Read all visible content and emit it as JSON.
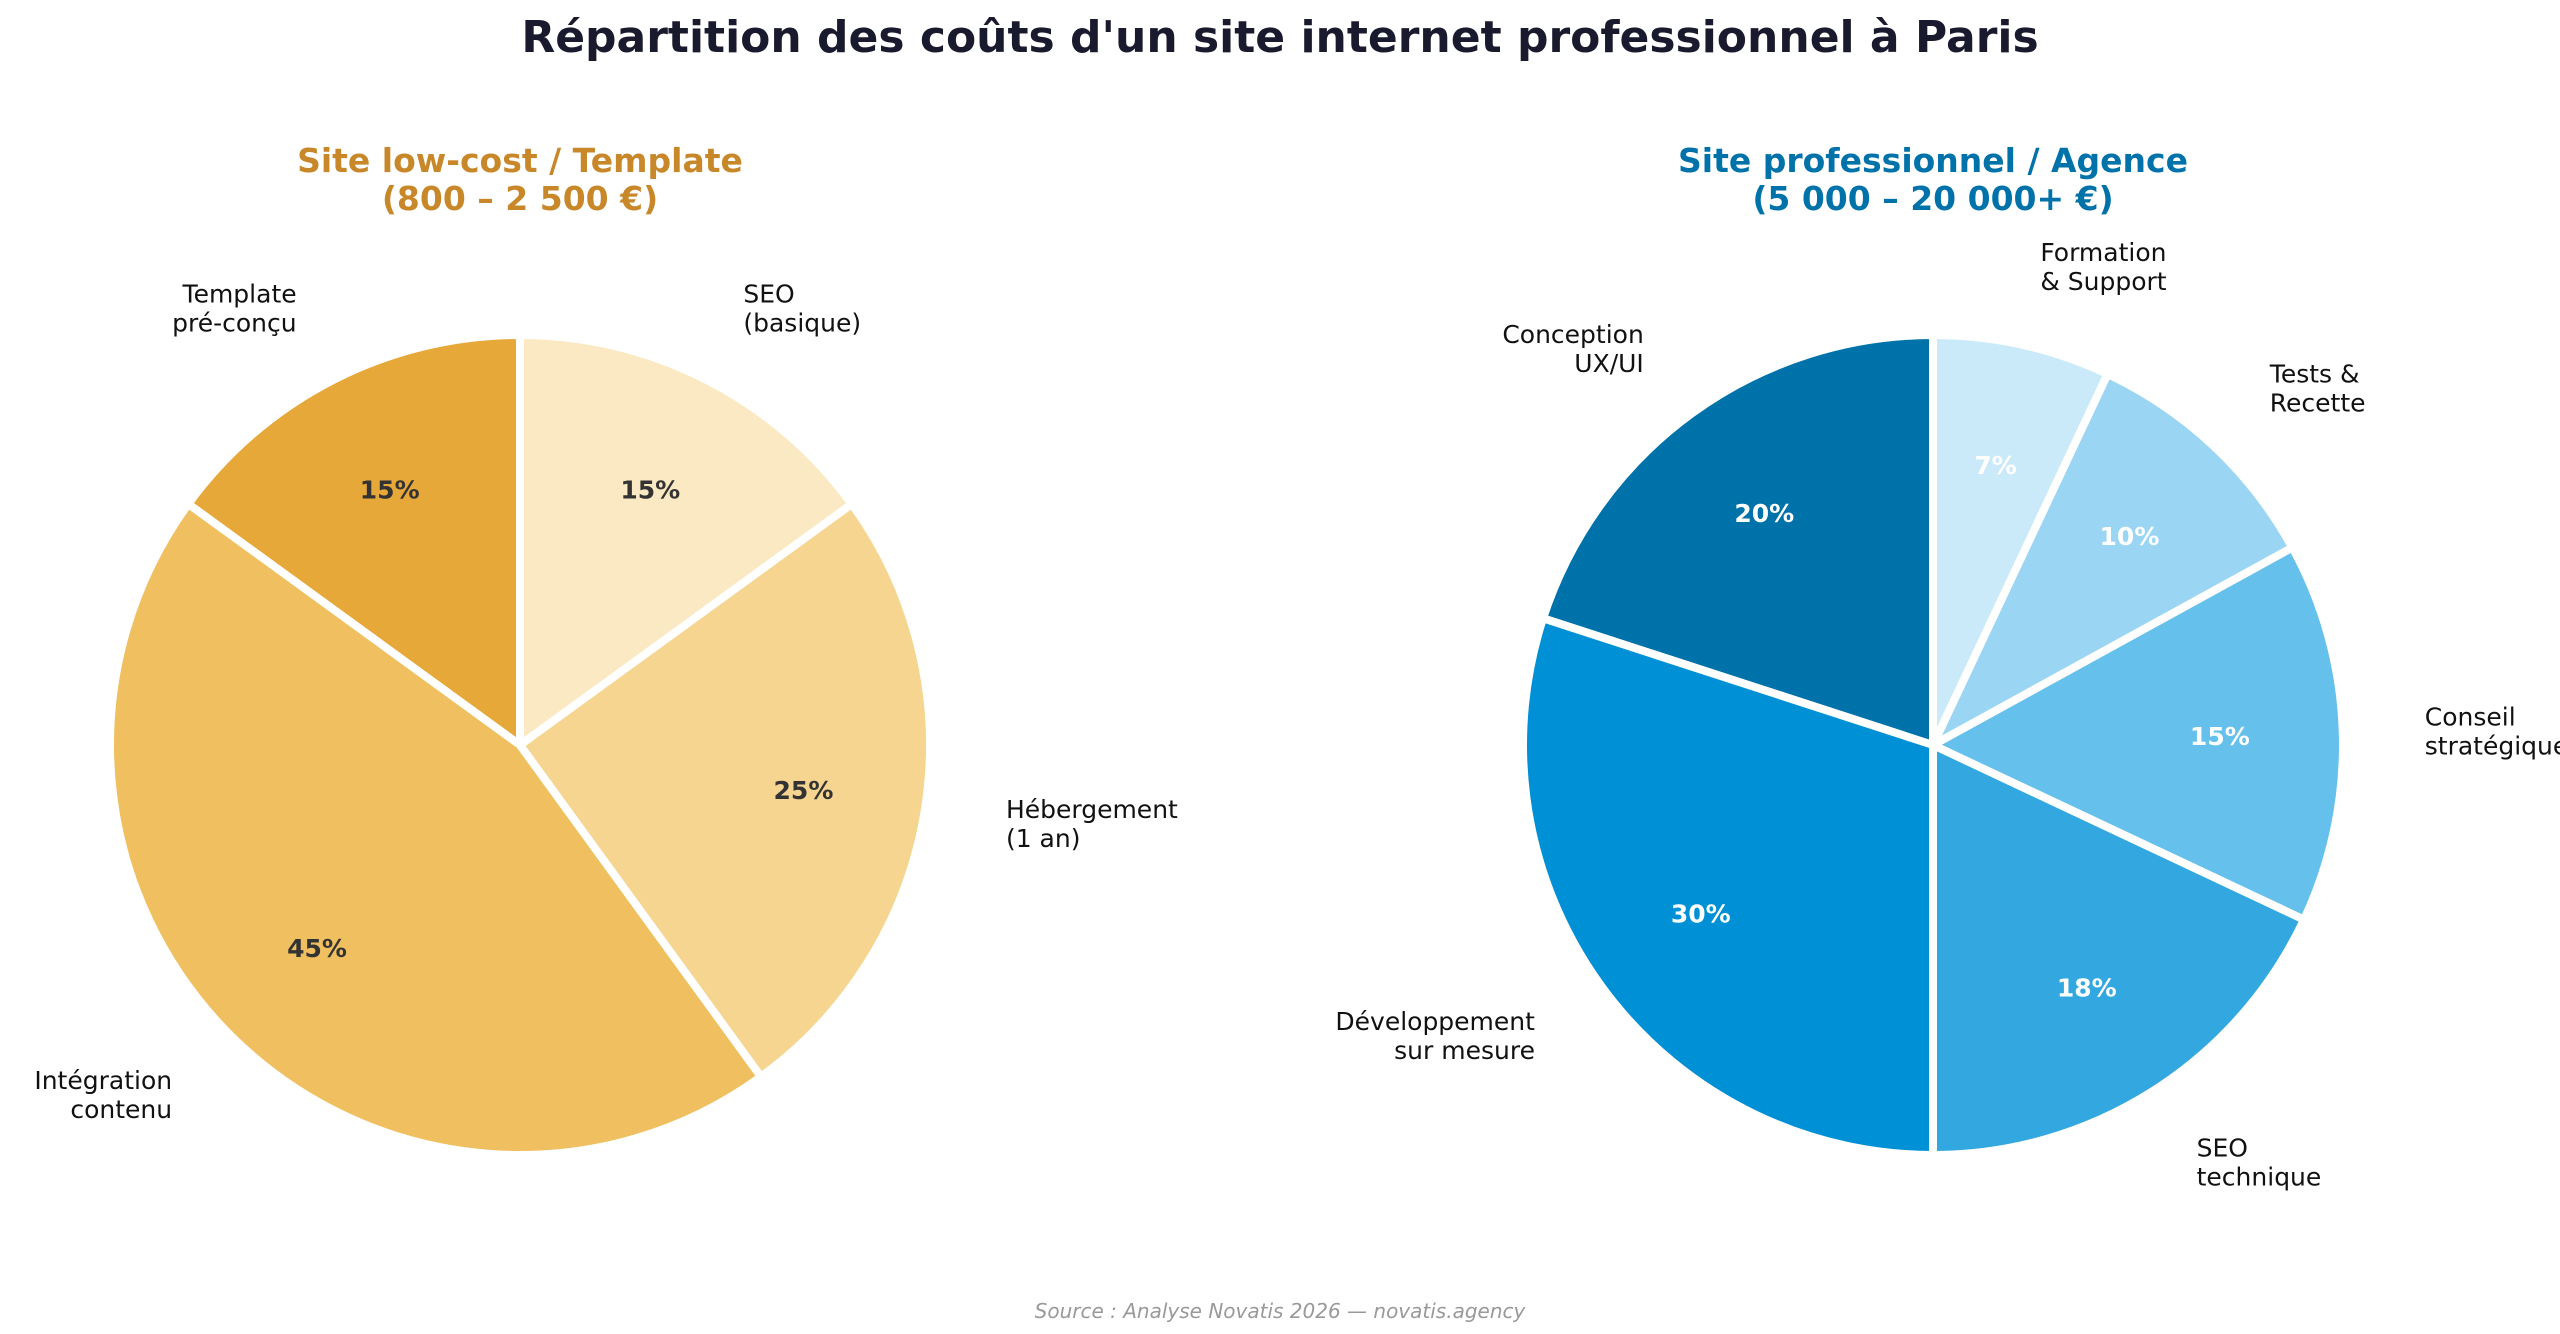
{
  "page": {
    "title": "Répartition des coûts d'un site internet professionnel à Paris",
    "source": "Source : Analyse Novatis 2026 — novatis.agency"
  },
  "chart_data": [
    {
      "type": "pie",
      "title": [
        "Site low-cost / Template",
        "(800 – 2 500 €)"
      ],
      "title_color": "#c8882a",
      "pct_color": "#333333",
      "slices": [
        {
          "label": [
            "Template",
            "pré-conçu"
          ],
          "pct_label": "15%",
          "value": 15,
          "color": "#e6a838"
        },
        {
          "label": [
            "Intégration",
            "contenu"
          ],
          "pct_label": "45%",
          "value": 45,
          "color": "#f0c060"
        },
        {
          "label": [
            "Hébergement",
            "(1 an)"
          ],
          "pct_label": "25%",
          "value": 25,
          "color": "#f6d590"
        },
        {
          "label": [
            "SEO",
            "(basique)"
          ],
          "pct_label": "15%",
          "value": 15,
          "color": "#fae9c2"
        }
      ]
    },
    {
      "type": "pie",
      "title": [
        "Site professionnel / Agence",
        "(5 000 – 20 000+ €)"
      ],
      "title_color": "#0072aa",
      "pct_color": "#ffffff",
      "slices": [
        {
          "label": [
            "Conception",
            "UX/UI"
          ],
          "pct_label": "20%",
          "value": 20,
          "color": "#0072aa"
        },
        {
          "label": [
            "Développement",
            "sur mesure"
          ],
          "pct_label": "30%",
          "value": 30,
          "color": "#0090d6"
        },
        {
          "label": [
            "SEO",
            "technique"
          ],
          "pct_label": "18%",
          "value": 18,
          "color": "#33a8e0"
        },
        {
          "label": [
            "Conseil",
            "stratégique"
          ],
          "pct_label": "15%",
          "value": 15,
          "color": "#66c0ec"
        },
        {
          "label": [
            "Tests &",
            "Recette"
          ],
          "pct_label": "10%",
          "value": 10,
          "color": "#9ad6f4"
        },
        {
          "label": [
            "Formation",
            "& Support"
          ],
          "pct_label": "7%",
          "value": 7,
          "color": "#cbeaf9"
        }
      ]
    }
  ]
}
